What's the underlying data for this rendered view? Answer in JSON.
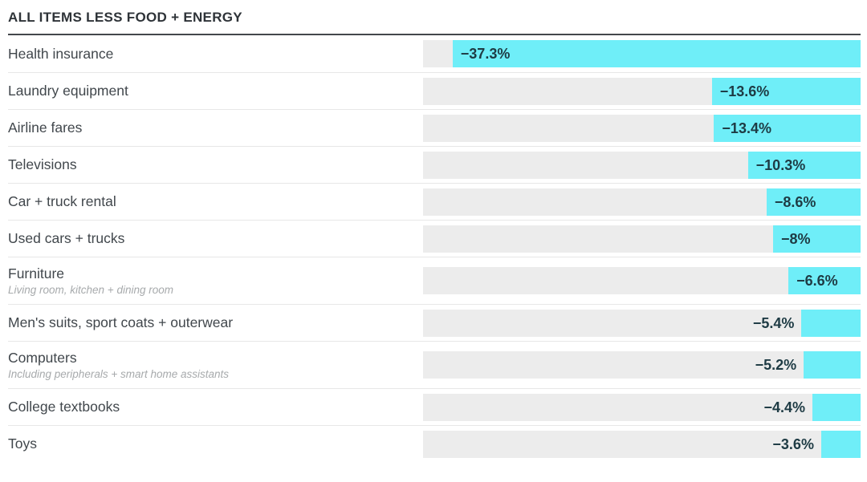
{
  "header": {
    "title": "ALL ITEMS LESS FOOD + ENERGY"
  },
  "chart_data": {
    "type": "bar",
    "orientation": "horizontal",
    "title": "ALL ITEMS LESS FOOD + ENERGY",
    "axis_max_abs_pct": 40,
    "bar_color": "#6feef8",
    "track_color": "#ececec",
    "value_text_color": "#1e3b44",
    "categories": [
      "Health insurance",
      "Laundry equipment",
      "Airline fares",
      "Televisions",
      "Car + truck rental",
      "Used cars + trucks",
      "Furniture",
      "Men's suits, sport coats + outerwear",
      "Computers",
      "College textbooks",
      "Toys"
    ],
    "values": [
      -37.3,
      -13.6,
      -13.4,
      -10.3,
      -8.6,
      -8,
      -6.6,
      -5.4,
      -5.2,
      -4.4,
      -3.6
    ],
    "rows": [
      {
        "label": "Health insurance",
        "value": -37.3,
        "display": "−37.3%"
      },
      {
        "label": "Laundry equipment",
        "value": -13.6,
        "display": "−13.6%"
      },
      {
        "label": "Airline fares",
        "value": -13.4,
        "display": "−13.4%"
      },
      {
        "label": "Televisions",
        "value": -10.3,
        "display": "−10.3%"
      },
      {
        "label": "Car + truck rental",
        "value": -8.6,
        "display": "−8.6%"
      },
      {
        "label": "Used cars + trucks",
        "value": -8,
        "display": "−8%"
      },
      {
        "label": "Furniture",
        "sublabel": "Living room, kitchen + dining room",
        "value": -6.6,
        "display": "−6.6%"
      },
      {
        "label": "Men's suits, sport coats + outerwear",
        "value": -5.4,
        "display": "−5.4%"
      },
      {
        "label": "Computers",
        "sublabel": "Including peripherals + smart home assistants",
        "value": -5.2,
        "display": "−5.2%"
      },
      {
        "label": "College textbooks",
        "value": -4.4,
        "display": "−4.4%"
      },
      {
        "label": "Toys",
        "value": -3.6,
        "display": "−3.6%"
      }
    ]
  }
}
